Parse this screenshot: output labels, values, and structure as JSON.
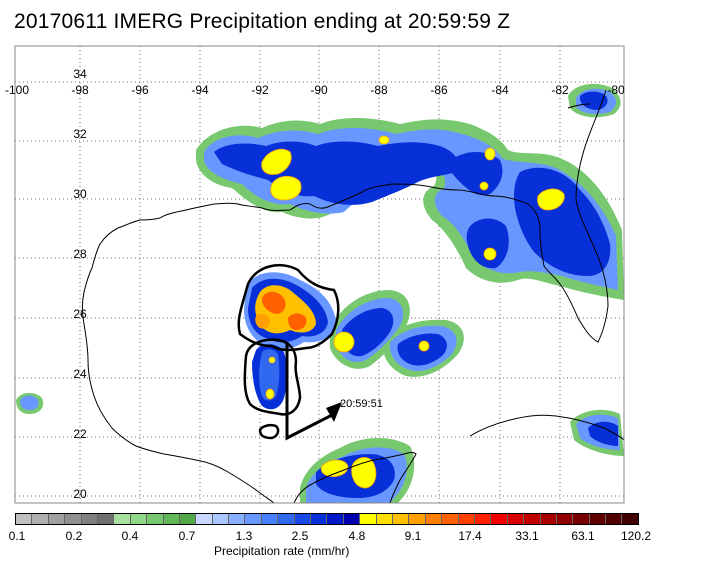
{
  "title": "20170611 IMERG Precipitation ending at 20:59:59 Z",
  "map": {
    "lon_labels": [
      "-100",
      "-98",
      "-96",
      "-94",
      "-92",
      "-90",
      "-88",
      "-86",
      "-84",
      "-82",
      "-80"
    ],
    "lat_labels": [
      "34",
      "32",
      "30",
      "28",
      "26",
      "24",
      "22",
      "20"
    ],
    "storm_time_label": "20:59:51"
  },
  "colorbar": {
    "title": "Precipitation rate (mm/hr)",
    "labels": [
      "0.1",
      "0.2",
      "0.4",
      "0.7",
      "1.3",
      "2.5",
      "4.8",
      "9.1",
      "17.4",
      "33.1",
      "63.1",
      "120.2"
    ],
    "colors": [
      "#c0c0c0",
      "#b0b0b0",
      "#a0a0a0",
      "#909090",
      "#808080",
      "#707070",
      "#a8e0a0",
      "#90d888",
      "#78c870",
      "#60b858",
      "#50a848",
      "#c8d8ff",
      "#a8c8ff",
      "#88b0ff",
      "#6898ff",
      "#4880ff",
      "#3068f0",
      "#1848e8",
      "#0830d8",
      "#0018c8",
      "#0000b0",
      "#ffff00",
      "#ffe000",
      "#ffc000",
      "#ffa000",
      "#ff8000",
      "#ff6000",
      "#ff4000",
      "#ff2000",
      "#f00000",
      "#d80000",
      "#c00000",
      "#a80000",
      "#900000",
      "#780000",
      "#600000",
      "#500000",
      "#400000"
    ]
  }
}
